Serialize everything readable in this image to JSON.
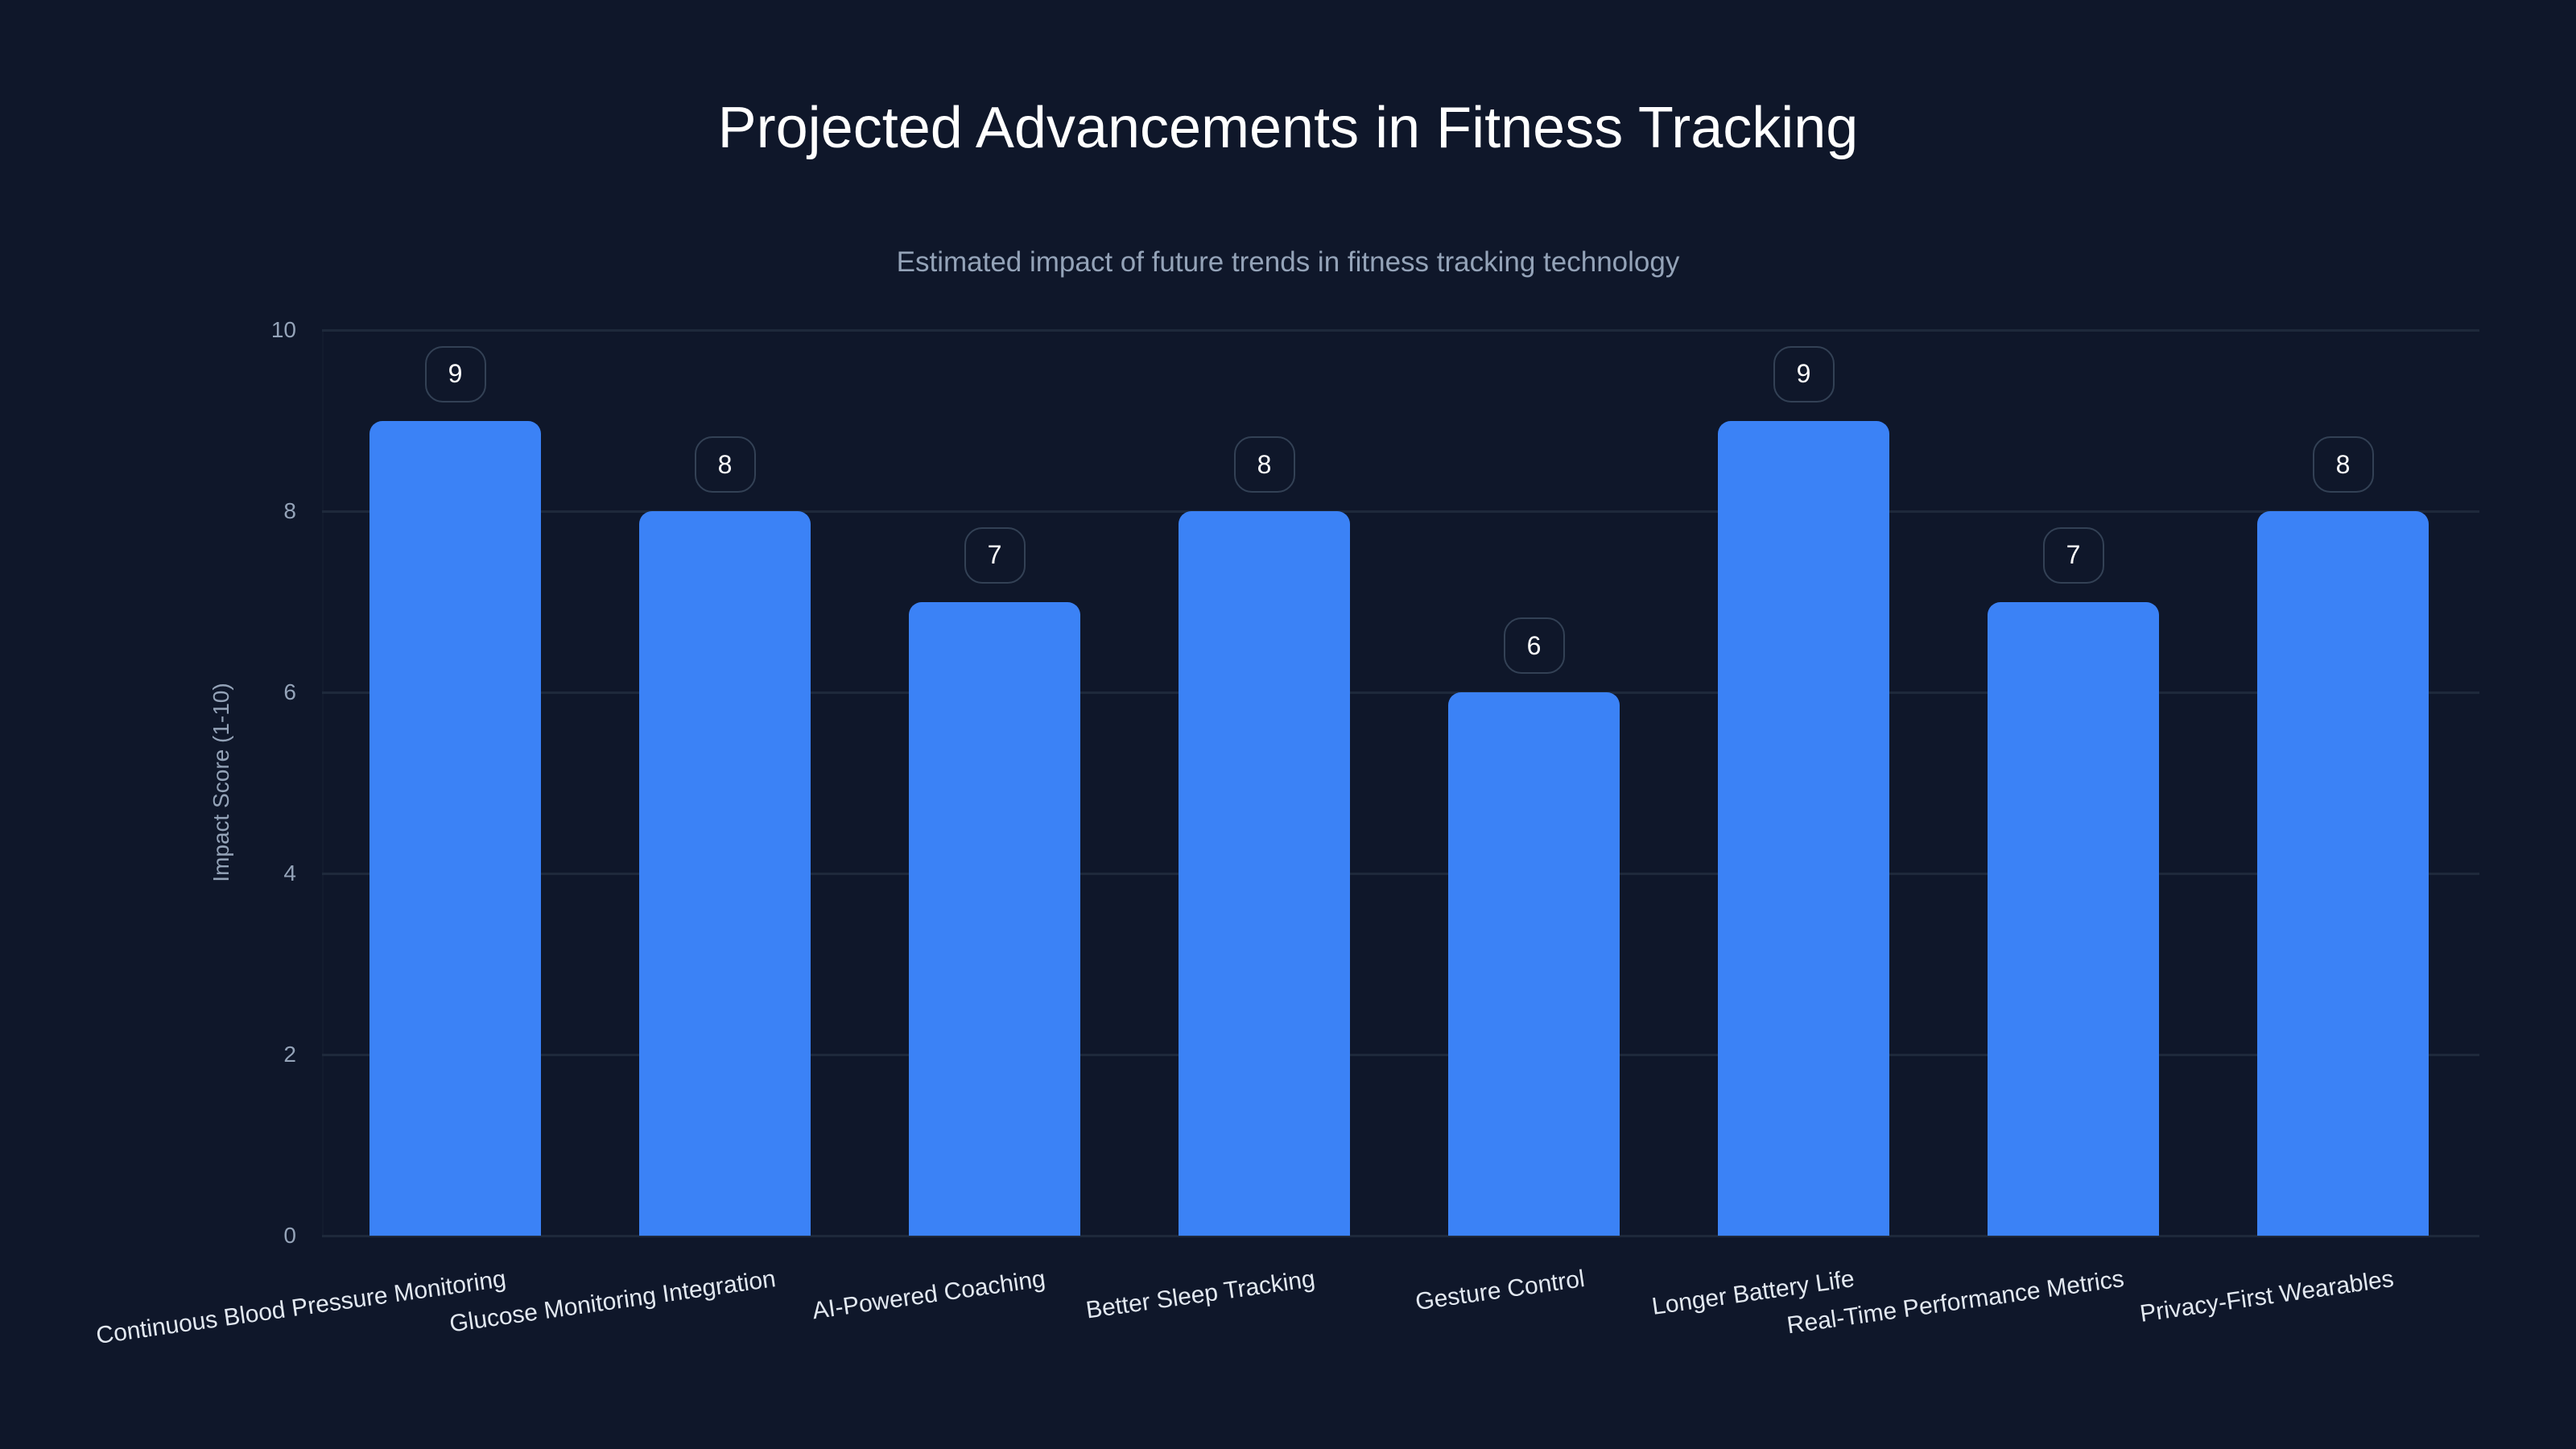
{
  "chart_data": {
    "type": "bar",
    "title": "Projected Advancements in Fitness Tracking",
    "subtitle": "Estimated impact of future trends in fitness tracking technology",
    "xlabel": "",
    "ylabel": "Impact Score (1-10)",
    "ylim": [
      0,
      10
    ],
    "yticks": [
      "0",
      "2",
      "4",
      "6",
      "8",
      "10"
    ],
    "grid": true,
    "legend": null,
    "bar_color": "#3b82f6",
    "categories": [
      "Continuous Blood Pressure Monitoring",
      "Glucose Monitoring Integration",
      "AI-Powered Coaching",
      "Better Sleep Tracking",
      "Gesture Control",
      "Longer Battery Life",
      "Real-Time Performance Metrics",
      "Privacy-First Wearables"
    ],
    "values": [
      9,
      8,
      7,
      8,
      6,
      9,
      7,
      8
    ],
    "value_labels": [
      "9",
      "8",
      "7",
      "8",
      "6",
      "9",
      "7",
      "8"
    ]
  },
  "colors": {
    "background": "#0f172a",
    "bar": "#3b82f6",
    "grid": "#1e293b",
    "title": "#ffffff",
    "muted_text": "#94a3b8",
    "tick_text": "#e2e8f0",
    "label_border": "#334155"
  }
}
